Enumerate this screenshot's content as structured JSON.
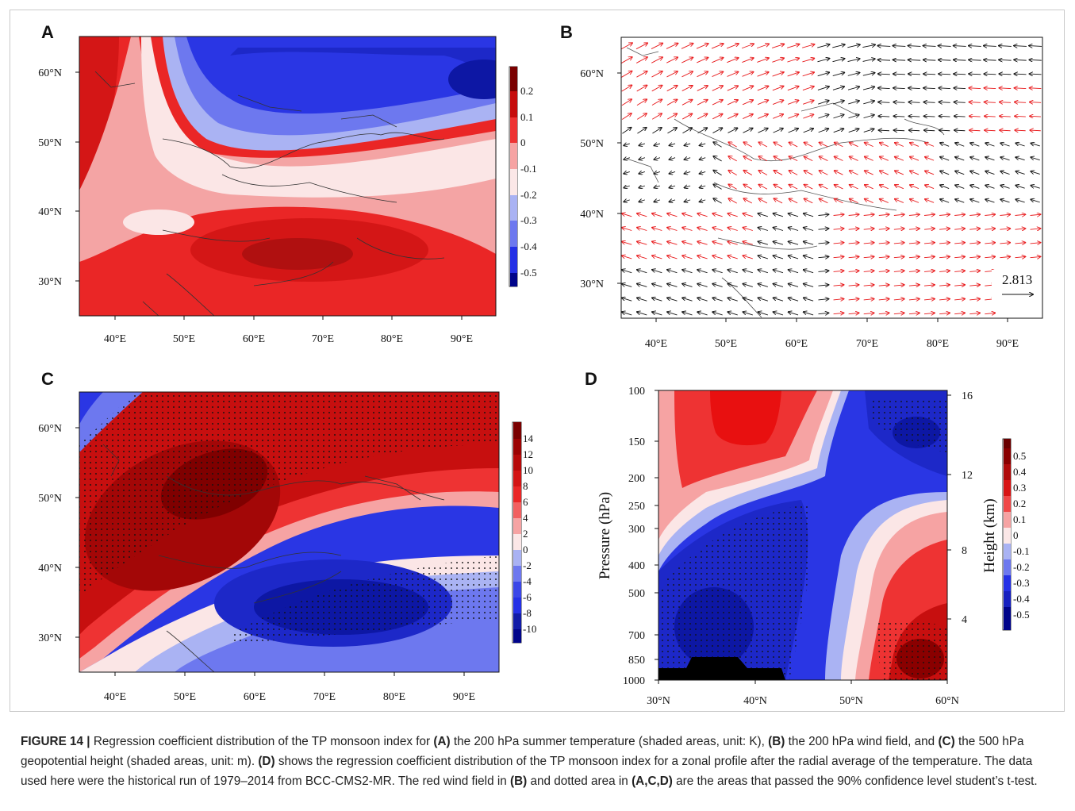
{
  "panels": {
    "A": {
      "label": "A"
    },
    "B": {
      "label": "B",
      "ref_vector": "2.813"
    },
    "C": {
      "label": "C"
    },
    "D": {
      "label": "D",
      "ylabel_left": "Pressure (hPa)",
      "ylabel_right": "Height (km)"
    }
  },
  "colors": {
    "deep_red": "#7a0000",
    "red": "#e8191b",
    "light_red": "#f6a3a3",
    "white": "#fbe7e7",
    "light_blue": "#a9b2f3",
    "blue": "#2430e6",
    "deep_blue": "#00048a"
  },
  "chart_data": [
    {
      "type": "heatmap",
      "panel": "A",
      "x_ticks": [
        "40°E",
        "50°E",
        "60°E",
        "70°E",
        "80°E",
        "90°E"
      ],
      "y_ticks": [
        "60°N",
        "50°N",
        "40°N",
        "30°N"
      ],
      "colorbar": [
        "0.2",
        "0.1",
        "0",
        "-0.1",
        "-0.2",
        "-0.3",
        "-0.4",
        "-0.5"
      ]
    },
    {
      "type": "scatter",
      "panel": "B",
      "x_ticks": [
        "40°E",
        "50°E",
        "60°E",
        "70°E",
        "80°E",
        "90°E"
      ],
      "y_ticks": [
        "60°N",
        "50°N",
        "40°N",
        "30°N"
      ]
    },
    {
      "type": "heatmap",
      "panel": "C",
      "x_ticks": [
        "40°E",
        "50°E",
        "60°E",
        "70°E",
        "80°E",
        "90°E"
      ],
      "y_ticks": [
        "60°N",
        "50°N",
        "40°N",
        "30°N"
      ],
      "colorbar": [
        "14",
        "12",
        "10",
        "8",
        "6",
        "4",
        "2",
        "0",
        "-2",
        "-4",
        "-6",
        "-8",
        "-10"
      ]
    },
    {
      "type": "heatmap",
      "panel": "D",
      "x_ticks": [
        "30°N",
        "40°N",
        "50°N",
        "60°N"
      ],
      "y_ticks_left": [
        "100",
        "150",
        "200",
        "250",
        "300",
        "400",
        "500",
        "700",
        "850",
        "1000"
      ],
      "y_ticks_right": [
        "16",
        "12",
        "8",
        "4"
      ],
      "colorbar": [
        "0.5",
        "0.4",
        "0.3",
        "0.2",
        "0.1",
        "0",
        "-0.1",
        "-0.2",
        "-0.3",
        "-0.4",
        "-0.5"
      ]
    }
  ],
  "caption": {
    "lead": "FIGURE 14 |",
    "t1": " Regression coefficient distribution of the TP monsoon index for ",
    "b1": "(A)",
    "t2": " the 200 hPa summer temperature (shaded areas, unit: K), ",
    "b2": "(B)",
    "t3": " the 200 hPa wind field, and ",
    "b3": "(C)",
    "t4": " the 500 hPa geopotential height (shaded areas, unit: m). ",
    "b4": "(D)",
    "t5": " shows the regression coefficient distribution of the TP monsoon index for a zonal profile after the radial average of the temperature. The data used here were the historical run of 1979–2014 from BCC-CMS2-MR. The red wind field in ",
    "b5": "(B)",
    "t6": " and dotted area in ",
    "b6": "(A,C,D)",
    "t7": " are the areas that passed the 90% confidence level student’s t-test."
  }
}
